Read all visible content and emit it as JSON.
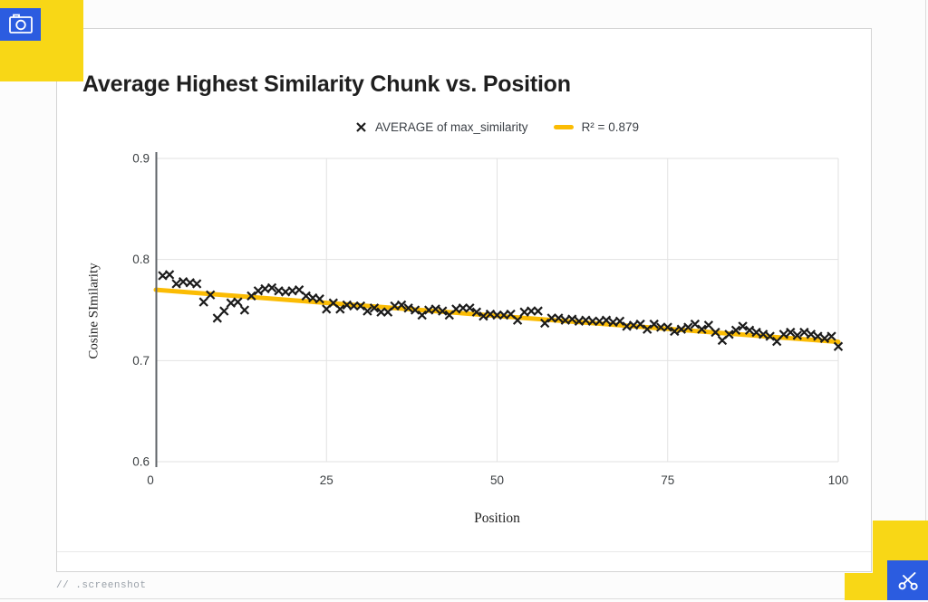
{
  "frame": {
    "slide_label": "// .screenshot",
    "colors": {
      "accent_blue": "#2B5CE0",
      "accent_yellow": "#F8D716",
      "page_border": "#dcdcdc"
    }
  },
  "chart_data": {
    "type": "scatter",
    "title": "Average Highest Similarity Chunk vs. Position",
    "xlabel": "Position",
    "ylabel": "Cosine SImilarity",
    "xlim": [
      0,
      100
    ],
    "ylim": [
      0.6,
      0.9
    ],
    "x_ticks": [
      0,
      25,
      50,
      75,
      100
    ],
    "y_ticks": [
      0.6,
      0.7,
      0.8,
      0.9
    ],
    "grid": "on",
    "legend_position": "top-center",
    "legend": [
      {
        "marker": "x",
        "label": "AVERAGE of max_similarity"
      },
      {
        "marker": "line",
        "label": "R² = 0.879"
      }
    ],
    "colors": {
      "marker": "#1b1b1b",
      "trendline": "#FBBC04",
      "gridline": "#e2e2e2",
      "axis": "#5f6368",
      "tick_text": "#3c4043"
    },
    "series": [
      {
        "name": "AVERAGE of max_similarity",
        "x": [
          1,
          2,
          3,
          4,
          5,
          6,
          7,
          8,
          9,
          10,
          11,
          12,
          13,
          14,
          15,
          16,
          17,
          18,
          19,
          20,
          21,
          22,
          23,
          24,
          25,
          26,
          27,
          28,
          29,
          30,
          31,
          32,
          33,
          34,
          35,
          36,
          37,
          38,
          39,
          40,
          41,
          42,
          43,
          44,
          45,
          46,
          47,
          48,
          49,
          50,
          51,
          52,
          53,
          54,
          55,
          56,
          57,
          58,
          59,
          60,
          61,
          62,
          63,
          64,
          65,
          66,
          67,
          68,
          69,
          70,
          71,
          72,
          73,
          74,
          75,
          76,
          77,
          78,
          79,
          80,
          81,
          82,
          83,
          84,
          85,
          86,
          87,
          88,
          89,
          90,
          91,
          92,
          93,
          94,
          95,
          96,
          97,
          98,
          99,
          100
        ],
        "y": [
          0.784,
          0.785,
          0.776,
          0.778,
          0.777,
          0.776,
          0.758,
          0.765,
          0.742,
          0.749,
          0.757,
          0.758,
          0.75,
          0.764,
          0.769,
          0.771,
          0.772,
          0.769,
          0.768,
          0.769,
          0.77,
          0.764,
          0.762,
          0.761,
          0.751,
          0.757,
          0.751,
          0.755,
          0.754,
          0.754,
          0.749,
          0.752,
          0.748,
          0.748,
          0.754,
          0.755,
          0.752,
          0.75,
          0.745,
          0.75,
          0.751,
          0.749,
          0.745,
          0.751,
          0.752,
          0.752,
          0.748,
          0.744,
          0.746,
          0.745,
          0.745,
          0.746,
          0.74,
          0.748,
          0.749,
          0.749,
          0.737,
          0.742,
          0.742,
          0.74,
          0.741,
          0.739,
          0.74,
          0.739,
          0.739,
          0.74,
          0.738,
          0.739,
          0.734,
          0.735,
          0.736,
          0.731,
          0.736,
          0.733,
          0.733,
          0.729,
          0.731,
          0.733,
          0.736,
          0.731,
          0.735,
          0.728,
          0.72,
          0.726,
          0.73,
          0.734,
          0.73,
          0.728,
          0.726,
          0.724,
          0.719,
          0.726,
          0.728,
          0.725,
          0.728,
          0.726,
          0.724,
          0.722,
          0.724,
          0.714
        ]
      }
    ],
    "trendline": {
      "x": [
        0,
        100
      ],
      "y": [
        0.77,
        0.7185
      ],
      "r_squared": 0.879,
      "label": "R² = 0.879"
    }
  }
}
